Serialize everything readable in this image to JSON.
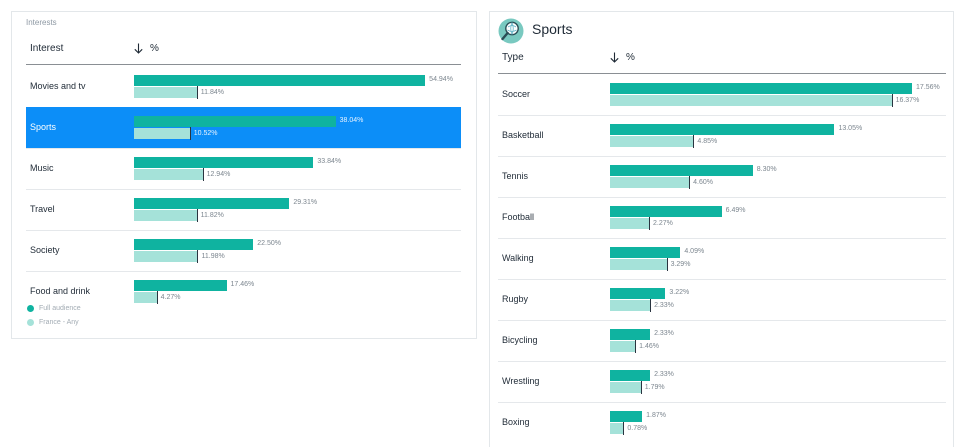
{
  "colors": {
    "full_audience": "#0fb3a0",
    "france_any": "#a5e2d9",
    "selected_row": "#0c8ef8"
  },
  "interests": {
    "caption": "Interests",
    "column_label": "Interest",
    "percent_label": "%",
    "sort_icon": "arrow-down-icon",
    "rows": [
      {
        "label": "Movies and tv",
        "full": "54.94%",
        "france": "11.84%",
        "full_value": 54.94,
        "france_value": 11.84,
        "selected": false
      },
      {
        "label": "Sports",
        "full": "38.04%",
        "france": "10.52%",
        "full_value": 38.04,
        "france_value": 10.52,
        "selected": true
      },
      {
        "label": "Music",
        "full": "33.84%",
        "france": "12.94%",
        "full_value": 33.84,
        "france_value": 12.94,
        "selected": false
      },
      {
        "label": "Travel",
        "full": "29.31%",
        "france": "11.82%",
        "full_value": 29.31,
        "france_value": 11.82,
        "selected": false
      },
      {
        "label": "Society",
        "full": "22.50%",
        "france": "11.98%",
        "full_value": 22.5,
        "france_value": 11.98,
        "selected": false
      },
      {
        "label": "Food and drink",
        "full": "17.46%",
        "france": "4.27%",
        "full_value": 17.46,
        "france_value": 4.27,
        "selected": false
      }
    ],
    "legend": {
      "full": "Full audience",
      "france": "France - Any"
    }
  },
  "sports": {
    "title": "Sports",
    "icon": "magnifier-globe-icon",
    "column_label": "Type",
    "percent_label": "%",
    "sort_icon": "arrow-down-icon",
    "rows": [
      {
        "label": "Soccer",
        "full": "17.56%",
        "france": "16.37%",
        "full_value": 17.56,
        "france_value": 16.37
      },
      {
        "label": "Basketball",
        "full": "13.05%",
        "france": "4.85%",
        "full_value": 13.05,
        "france_value": 4.85
      },
      {
        "label": "Tennis",
        "full": "8.30%",
        "france": "4.60%",
        "full_value": 8.3,
        "france_value": 4.6
      },
      {
        "label": "Football",
        "full": "6.49%",
        "france": "2.27%",
        "full_value": 6.49,
        "france_value": 2.27
      },
      {
        "label": "Walking",
        "full": "4.09%",
        "france": "3.29%",
        "full_value": 4.09,
        "france_value": 3.29
      },
      {
        "label": "Rugby",
        "full": "3.22%",
        "france": "2.33%",
        "full_value": 3.22,
        "france_value": 2.33
      },
      {
        "label": "Bicycling",
        "full": "2.33%",
        "france": "1.46%",
        "full_value": 2.33,
        "france_value": 1.46
      },
      {
        "label": "Wrestling",
        "full": "2.33%",
        "france": "1.79%",
        "full_value": 2.33,
        "france_value": 1.79
      },
      {
        "label": "Boxing",
        "full": "1.87%",
        "france": "0.78%",
        "full_value": 1.87,
        "france_value": 0.78
      }
    ]
  }
}
